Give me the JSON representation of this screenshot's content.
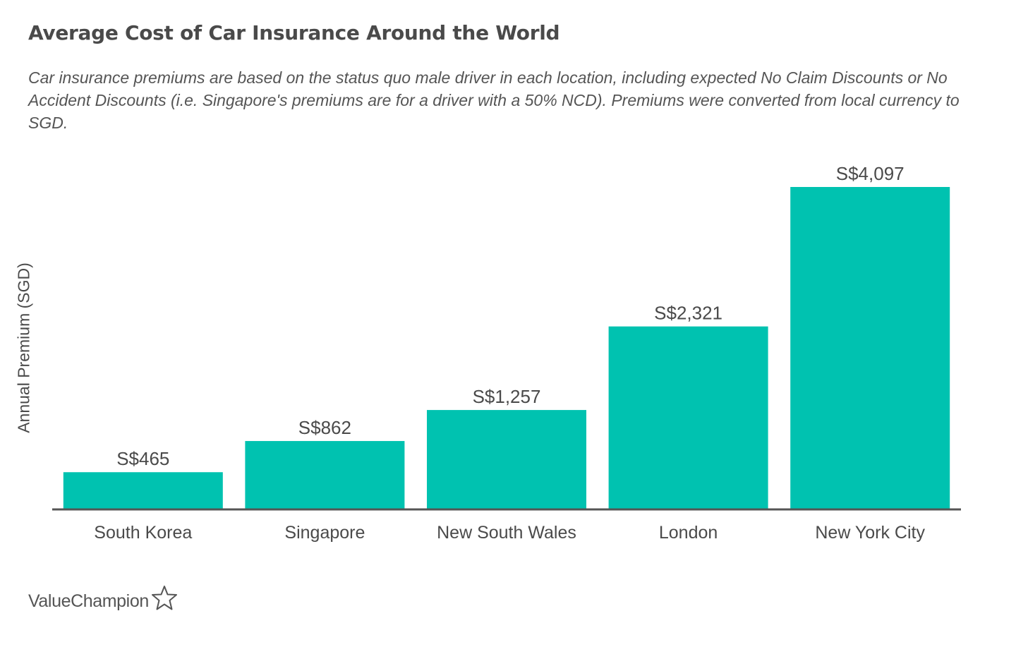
{
  "chart_data": {
    "type": "bar",
    "title": "Average Cost of Car Insurance Around the World",
    "subtitle": "Car insurance premiums are based on the status quo male driver in each location, including expected No Claim Discounts or No Accident Discounts (i.e. Singapore's premiums are for a driver with a 50% NCD). Premiums were converted from local currency to SGD.",
    "xlabel": "",
    "ylabel": "Annual Premium (SGD)",
    "categories": [
      "South Korea",
      "Singapore",
      "New South Wales",
      "London",
      "New York City"
    ],
    "values": [
      465,
      862,
      1257,
      2321,
      4097
    ],
    "data_labels": [
      "S$465",
      "S$862",
      "S$1,257",
      "S$2,321",
      "S$4,097"
    ],
    "ylim": [
      0,
      4097
    ],
    "grid": false,
    "legend": "none",
    "bar_color": "#00c2b0",
    "axis_color": "#555555",
    "text_color": "#4a4a4a"
  },
  "brand": {
    "name": "ValueChampion",
    "icon": "star-outline-icon"
  }
}
